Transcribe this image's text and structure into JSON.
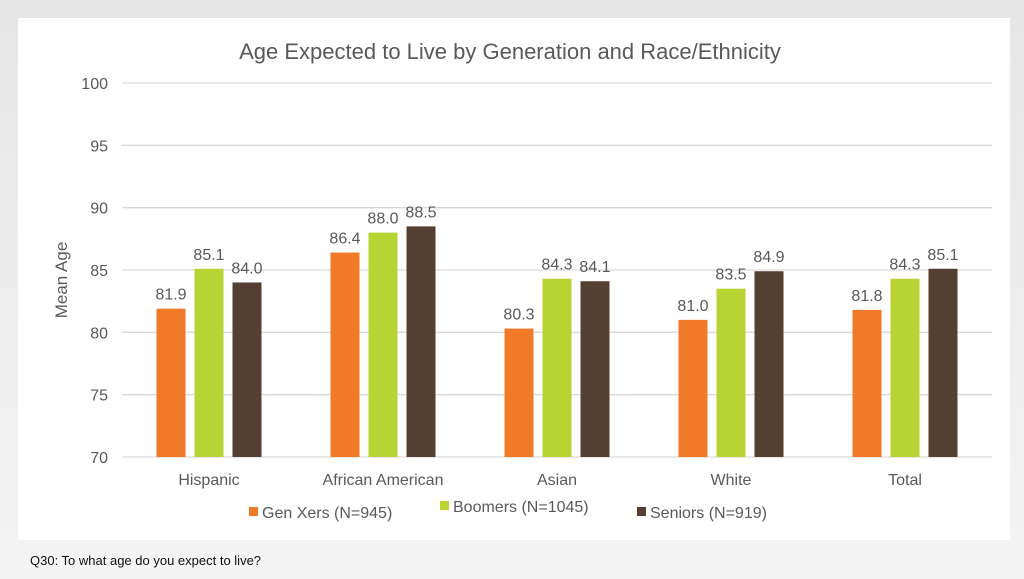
{
  "footnote": "Q30: To what age do you expect to live?",
  "colors": {
    "gen_x": "#f07a28",
    "boomers": "#b7d433",
    "seniors": "#553f33",
    "grid": "#d9d9d9",
    "text": "#595959"
  },
  "chart_data": {
    "type": "bar",
    "title": "Age Expected to Live by Generation and Race/Ethnicity",
    "xlabel": "",
    "ylabel": "Mean Age",
    "ylim": [
      70,
      100
    ],
    "yticks": [
      70,
      75,
      80,
      85,
      90,
      95,
      100
    ],
    "grid": true,
    "legend_position": "bottom",
    "categories": [
      "Hispanic",
      "African American",
      "Asian",
      "White",
      "Total"
    ],
    "series": [
      {
        "name": "Gen Xers (N=945)",
        "color": "#f07a28",
        "values": [
          81.9,
          86.4,
          80.3,
          81.0,
          81.8
        ],
        "labels": [
          "81.9",
          "86.4",
          "80.3",
          "81.0",
          "81.8"
        ]
      },
      {
        "name": "Boomers (N=1045)",
        "color": "#b7d433",
        "values": [
          85.1,
          88.0,
          84.3,
          83.5,
          84.3
        ],
        "labels": [
          "85.1",
          "88.0",
          "84.3",
          "83.5",
          "84.3"
        ]
      },
      {
        "name": "Seniors (N=919)",
        "color": "#553f33",
        "values": [
          84.0,
          88.5,
          84.1,
          84.9,
          85.1
        ],
        "labels": [
          "84.0",
          "88.5",
          "84.1",
          "84.9",
          "85.1"
        ]
      }
    ]
  }
}
